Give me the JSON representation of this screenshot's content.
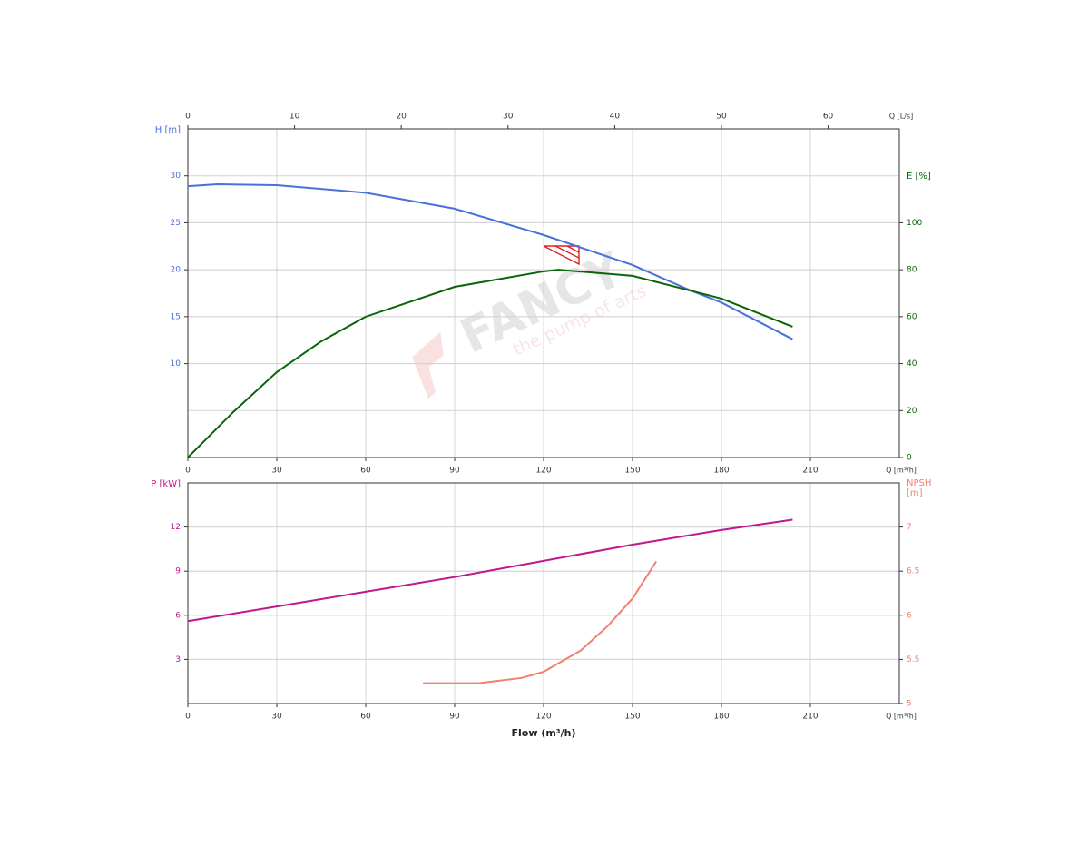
{
  "watermark": {
    "brand": "FANCY",
    "tagline": "the pump of arts"
  },
  "chart_data": [
    {
      "type": "line",
      "xlim": [
        0,
        240
      ],
      "xticks": [
        0,
        30,
        60,
        90,
        120,
        150,
        180,
        210
      ],
      "xlabel": "Q [m³/h]",
      "x2lim": [
        0,
        66.67
      ],
      "x2ticks": [
        0,
        10,
        20,
        30,
        40,
        50,
        60
      ],
      "x2label": "Q [L/s]",
      "ylim": [
        0,
        35
      ],
      "yticks": [
        10,
        15,
        20,
        25,
        30
      ],
      "ylabel": "H [m]",
      "y2lim": [
        0,
        140
      ],
      "y2ticks": [
        0,
        20,
        40,
        60,
        80,
        100
      ],
      "y2label": [
        "E [%]"
      ],
      "grid": true,
      "series": [
        {
          "name": "H",
          "color": "#4a70d9",
          "x": [
            0,
            10,
            30,
            60,
            90,
            120,
            150,
            168,
            180,
            204
          ],
          "values": [
            28.9,
            29.1,
            29.0,
            28.2,
            26.5,
            23.7,
            20.5,
            18.0,
            16.5,
            12.6
          ]
        },
        {
          "name": "E",
          "color": "#0a640a",
          "axis": "y2",
          "x": [
            0,
            15,
            30,
            45,
            60,
            90,
            120,
            125,
            150,
            180,
            204
          ],
          "values": [
            0,
            19,
            36.4,
            49.5,
            60,
            72.7,
            79.3,
            80,
            77.4,
            67.7,
            55.7
          ]
        }
      ]
    },
    {
      "type": "line",
      "xlim": [
        0,
        240
      ],
      "xticks": [
        0,
        30,
        60,
        90,
        120,
        150,
        180,
        210
      ],
      "xlabel": "Q [m³/h]",
      "xtitle": "Flow (m³/h)",
      "ylim": [
        0,
        15
      ],
      "yticks": [
        3,
        6,
        9,
        12
      ],
      "ylabel": "P [kW]",
      "y2lim": [
        5,
        7.5
      ],
      "y2ticks": [
        5,
        5.5,
        6,
        6.5,
        7
      ],
      "y2label": [
        "NPSH",
        "[m]"
      ],
      "grid": true,
      "series": [
        {
          "name": "P",
          "color": "#c0188c",
          "x": [
            0,
            30,
            60,
            90,
            120,
            150,
            180,
            204
          ],
          "values": [
            5.6,
            6.6,
            7.6,
            8.6,
            9.7,
            10.8,
            11.8,
            12.5
          ]
        },
        {
          "name": "NPSH",
          "color": "#f08070",
          "axis": "y2",
          "x": [
            79.3,
            98,
            112.6,
            120,
            132.5,
            141.7,
            150,
            158
          ],
          "values": [
            5.23,
            5.23,
            5.29,
            5.36,
            5.6,
            5.88,
            6.19,
            6.61
          ]
        }
      ]
    }
  ]
}
